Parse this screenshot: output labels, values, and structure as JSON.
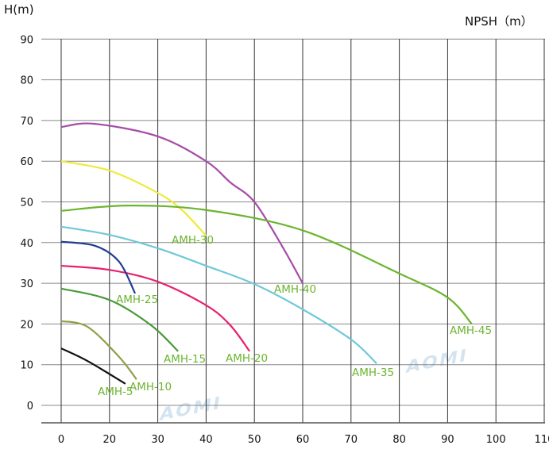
{
  "chart_data": {
    "type": "line",
    "ylabel": "H(m)",
    "right_label": "NPSH（m）",
    "xlim": [
      0,
      110
    ],
    "ylim": [
      0,
      90
    ],
    "x_tick_labels": [
      "0",
      "20",
      "30",
      "40",
      "50",
      "60",
      "70",
      "80",
      "90",
      "100",
      "110"
    ],
    "y_tick_labels": [
      "90",
      "80",
      "70",
      "60",
      "50",
      "40",
      "30",
      "20",
      "10",
      "0"
    ],
    "grid": true,
    "label_color": "#6bb52e",
    "watermark": "AOMI",
    "series": [
      {
        "name": "AMH-5",
        "color": "#111111",
        "x": [
          0,
          10.9,
          23.3
        ],
        "y": [
          14,
          10.9,
          5.3
        ]
      },
      {
        "name": "AMH-10",
        "color": "#8fa048",
        "x": [
          0,
          10.9,
          22,
          25.6
        ],
        "y": [
          20.7,
          19.3,
          11.9,
          6.4
        ]
      },
      {
        "name": "AMH-15",
        "color": "#4a9a3a",
        "x": [
          0,
          20,
          28.6,
          34.2
        ],
        "y": [
          28.7,
          25.9,
          19.7,
          13.3
        ]
      },
      {
        "name": "AMH-20",
        "color": "#e8206e",
        "x": [
          0,
          20,
          30,
          40,
          45,
          49
        ],
        "y": [
          34.3,
          33.3,
          30.4,
          24.6,
          19.7,
          13.3
        ]
      },
      {
        "name": "AMH-25",
        "color": "#1f3e8f",
        "x": [
          0,
          14.1,
          22,
          25.3
        ],
        "y": [
          40.2,
          39.2,
          35.3,
          27.5
        ]
      },
      {
        "name": "AMH-30",
        "color": "#eeea3a",
        "x": [
          0,
          20,
          30,
          35,
          40
        ],
        "y": [
          60,
          57.7,
          52.2,
          48,
          41.7
        ]
      },
      {
        "name": "AMH-35",
        "color": "#6ec8d8",
        "x": [
          0,
          20,
          30,
          40,
          50,
          60,
          70,
          75.3
        ],
        "y": [
          43.9,
          41.9,
          38.6,
          34.3,
          29.8,
          23.6,
          16.2,
          10.3
        ]
      },
      {
        "name": "AMH-40",
        "color": "#a64ca6",
        "x": [
          0,
          13.5,
          30,
          40,
          45,
          50,
          55.7,
          60
        ],
        "y": [
          68.4,
          69.2,
          66.1,
          60,
          54.8,
          50,
          39.2,
          30
        ]
      },
      {
        "name": "AMH-45",
        "color": "#6bb52e",
        "x": [
          0,
          23.7,
          40,
          60,
          80,
          90,
          95
        ],
        "y": [
          47.8,
          49.1,
          48,
          43,
          32.4,
          26.5,
          20
        ]
      }
    ]
  }
}
